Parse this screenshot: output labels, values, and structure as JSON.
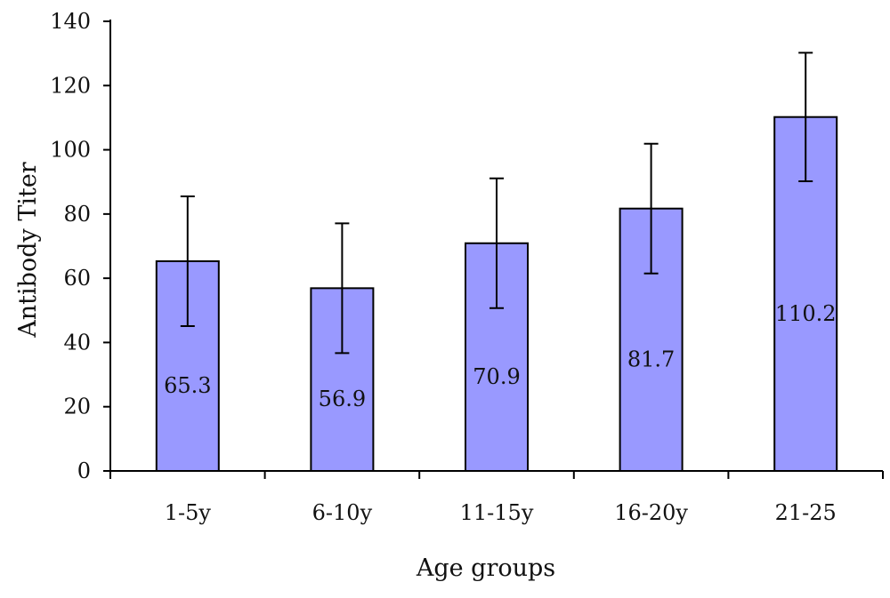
{
  "chart_data": {
    "type": "bar",
    "categories": [
      "1-5y",
      "6-10y",
      "11-15y",
      "16-20y",
      "21-25"
    ],
    "values": [
      65.3,
      56.9,
      70.9,
      81.7,
      110.2
    ],
    "errors": [
      20.2,
      20.2,
      20.2,
      20.2,
      20.0
    ],
    "data_labels": [
      "65.3",
      "56.9",
      "70.9",
      "81.7",
      "110.2"
    ],
    "ylim": [
      0,
      140
    ],
    "yticks": [
      "0",
      "20",
      "40",
      "60",
      "80",
      "100",
      "120",
      "140"
    ],
    "xlabel": "Age groups",
    "ylabel": "Antibody Titer",
    "bar_color": "#9999ff",
    "grid": false
  }
}
